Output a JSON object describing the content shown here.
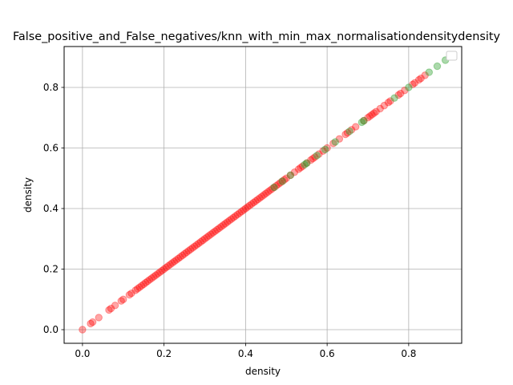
{
  "chart_data": {
    "type": "scatter",
    "title": "False_positive_and_False_negatives/knn_with_min_max_normalisationdensitydensity",
    "xlabel": "density",
    "ylabel": "density",
    "xlim": [
      -0.045,
      0.93
    ],
    "ylim": [
      -0.045,
      0.935
    ],
    "xticks": [
      0.0,
      0.2,
      0.4,
      0.6,
      0.8
    ],
    "yticks": [
      0.0,
      0.2,
      0.4,
      0.6,
      0.8
    ],
    "xtick_labels": [
      "0.0",
      "0.2",
      "0.4",
      "0.6",
      "0.8"
    ],
    "ytick_labels": [
      "0.0",
      "0.2",
      "0.4",
      "0.6",
      "0.8"
    ],
    "grid": true,
    "legend": {
      "placement": "top-right",
      "entries": []
    },
    "series": [
      {
        "color": "#ff0000",
        "alpha": 0.35,
        "points": [
          [
            0.0,
            0.0
          ],
          [
            0.02,
            0.02
          ],
          [
            0.025,
            0.025
          ],
          [
            0.04,
            0.04
          ],
          [
            0.065,
            0.065
          ],
          [
            0.07,
            0.07
          ],
          [
            0.08,
            0.08
          ],
          [
            0.095,
            0.095
          ],
          [
            0.1,
            0.1
          ],
          [
            0.115,
            0.115
          ],
          [
            0.12,
            0.12
          ],
          [
            0.13,
            0.13
          ],
          [
            0.135,
            0.135
          ],
          [
            0.14,
            0.14
          ],
          [
            0.145,
            0.145
          ],
          [
            0.15,
            0.15
          ],
          [
            0.155,
            0.155
          ],
          [
            0.16,
            0.16
          ],
          [
            0.165,
            0.165
          ],
          [
            0.17,
            0.17
          ],
          [
            0.175,
            0.175
          ],
          [
            0.18,
            0.18
          ],
          [
            0.185,
            0.185
          ],
          [
            0.19,
            0.19
          ],
          [
            0.195,
            0.195
          ],
          [
            0.2,
            0.2
          ],
          [
            0.205,
            0.205
          ],
          [
            0.21,
            0.21
          ],
          [
            0.215,
            0.215
          ],
          [
            0.22,
            0.22
          ],
          [
            0.225,
            0.225
          ],
          [
            0.23,
            0.23
          ],
          [
            0.235,
            0.235
          ],
          [
            0.24,
            0.24
          ],
          [
            0.245,
            0.245
          ],
          [
            0.25,
            0.25
          ],
          [
            0.255,
            0.255
          ],
          [
            0.26,
            0.26
          ],
          [
            0.265,
            0.265
          ],
          [
            0.27,
            0.27
          ],
          [
            0.275,
            0.275
          ],
          [
            0.28,
            0.28
          ],
          [
            0.285,
            0.285
          ],
          [
            0.29,
            0.29
          ],
          [
            0.295,
            0.295
          ],
          [
            0.3,
            0.3
          ],
          [
            0.305,
            0.305
          ],
          [
            0.31,
            0.31
          ],
          [
            0.315,
            0.315
          ],
          [
            0.32,
            0.32
          ],
          [
            0.325,
            0.325
          ],
          [
            0.33,
            0.33
          ],
          [
            0.335,
            0.335
          ],
          [
            0.34,
            0.34
          ],
          [
            0.345,
            0.345
          ],
          [
            0.35,
            0.35
          ],
          [
            0.355,
            0.355
          ],
          [
            0.36,
            0.36
          ],
          [
            0.365,
            0.365
          ],
          [
            0.37,
            0.37
          ],
          [
            0.375,
            0.375
          ],
          [
            0.38,
            0.38
          ],
          [
            0.385,
            0.385
          ],
          [
            0.39,
            0.39
          ],
          [
            0.395,
            0.395
          ],
          [
            0.4,
            0.4
          ],
          [
            0.405,
            0.405
          ],
          [
            0.41,
            0.41
          ],
          [
            0.415,
            0.415
          ],
          [
            0.42,
            0.42
          ],
          [
            0.425,
            0.425
          ],
          [
            0.43,
            0.43
          ],
          [
            0.435,
            0.435
          ],
          [
            0.44,
            0.44
          ],
          [
            0.445,
            0.445
          ],
          [
            0.45,
            0.45
          ],
          [
            0.455,
            0.455
          ],
          [
            0.46,
            0.46
          ],
          [
            0.465,
            0.465
          ],
          [
            0.47,
            0.47
          ],
          [
            0.475,
            0.475
          ],
          [
            0.48,
            0.48
          ],
          [
            0.485,
            0.485
          ],
          [
            0.49,
            0.49
          ],
          [
            0.495,
            0.495
          ],
          [
            0.5,
            0.5
          ],
          [
            0.51,
            0.51
          ],
          [
            0.52,
            0.52
          ],
          [
            0.53,
            0.53
          ],
          [
            0.535,
            0.535
          ],
          [
            0.54,
            0.54
          ],
          [
            0.55,
            0.55
          ],
          [
            0.56,
            0.56
          ],
          [
            0.565,
            0.565
          ],
          [
            0.57,
            0.57
          ],
          [
            0.58,
            0.58
          ],
          [
            0.59,
            0.59
          ],
          [
            0.6,
            0.6
          ],
          [
            0.615,
            0.615
          ],
          [
            0.63,
            0.63
          ],
          [
            0.645,
            0.645
          ],
          [
            0.65,
            0.65
          ],
          [
            0.66,
            0.66
          ],
          [
            0.67,
            0.67
          ],
          [
            0.69,
            0.69
          ],
          [
            0.7,
            0.7
          ],
          [
            0.705,
            0.705
          ],
          [
            0.71,
            0.71
          ],
          [
            0.715,
            0.715
          ],
          [
            0.72,
            0.72
          ],
          [
            0.73,
            0.73
          ],
          [
            0.74,
            0.74
          ],
          [
            0.75,
            0.75
          ],
          [
            0.755,
            0.755
          ],
          [
            0.775,
            0.775
          ],
          [
            0.78,
            0.78
          ],
          [
            0.79,
            0.79
          ],
          [
            0.81,
            0.81
          ],
          [
            0.815,
            0.815
          ],
          [
            0.825,
            0.825
          ],
          [
            0.83,
            0.83
          ],
          [
            0.84,
            0.84
          ]
        ]
      },
      {
        "color": "#2ca02c",
        "alpha": 0.4,
        "points": [
          [
            0.47,
            0.47
          ],
          [
            0.49,
            0.49
          ],
          [
            0.51,
            0.51
          ],
          [
            0.545,
            0.545
          ],
          [
            0.55,
            0.55
          ],
          [
            0.575,
            0.575
          ],
          [
            0.595,
            0.595
          ],
          [
            0.62,
            0.62
          ],
          [
            0.655,
            0.655
          ],
          [
            0.685,
            0.685
          ],
          [
            0.69,
            0.69
          ],
          [
            0.765,
            0.765
          ],
          [
            0.8,
            0.8
          ],
          [
            0.85,
            0.85
          ],
          [
            0.87,
            0.87
          ],
          [
            0.89,
            0.89
          ]
        ]
      }
    ]
  }
}
